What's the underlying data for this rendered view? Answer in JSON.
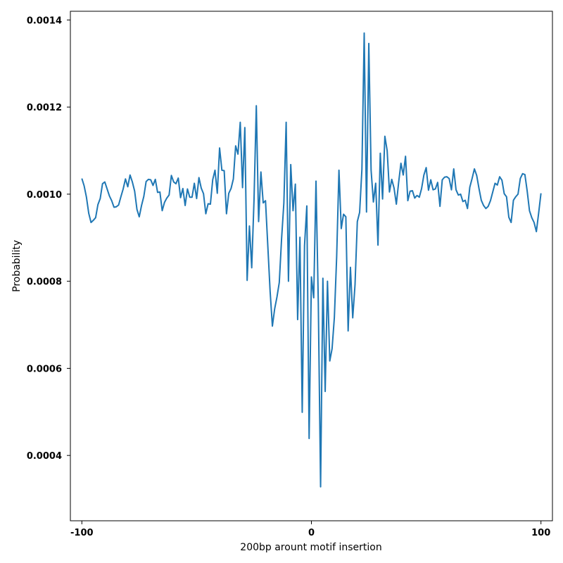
{
  "chart_data": {
    "type": "line",
    "title": "",
    "xlabel": "200bp arount motif insertion",
    "ylabel": "Probability",
    "xlim": [
      -105,
      105
    ],
    "ylim": [
      0.00025,
      0.00142
    ],
    "xticks": [
      -100,
      0,
      100
    ],
    "xtick_labels": [
      "-100",
      "0",
      "100"
    ],
    "yticks": [
      0.0004,
      0.0006,
      0.0008,
      0.001,
      0.0012,
      0.0014
    ],
    "ytick_labels": [
      "0.0004",
      "0.0006",
      "0.0008",
      "0.0010",
      "0.0012",
      "0.0014"
    ],
    "grid": false,
    "legend": "none",
    "series": [
      {
        "color": "#1f77b4",
        "x_start": -100,
        "x_step": 1,
        "y": [
          0.001036,
          0.001019,
          0.000993,
          0.000956,
          0.000935,
          0.00094,
          0.000946,
          0.000976,
          0.00099,
          0.001024,
          0.001028,
          0.001012,
          0.000996,
          0.000985,
          0.00097,
          0.000971,
          0.000975,
          0.000994,
          0.001012,
          0.001035,
          0.001017,
          0.001044,
          0.001028,
          0.001007,
          0.000965,
          0.000948,
          0.000974,
          0.000995,
          0.001029,
          0.001034,
          0.001033,
          0.00102,
          0.001034,
          0.001004,
          0.001005,
          0.000962,
          0.000981,
          0.000991,
          0.000998,
          0.001043,
          0.001028,
          0.001024,
          0.001037,
          0.000992,
          0.001013,
          0.000974,
          0.001012,
          0.000993,
          0.000993,
          0.001025,
          0.00099,
          0.001038,
          0.001014,
          0.001001,
          0.000955,
          0.000978,
          0.000977,
          0.001033,
          0.001055,
          0.001002,
          0.001106,
          0.001055,
          0.001054,
          0.000955,
          0.001002,
          0.001013,
          0.001035,
          0.001111,
          0.001092,
          0.001165,
          0.001015,
          0.001153,
          0.000802,
          0.000927,
          0.000831,
          0.000987,
          0.001203,
          0.000937,
          0.001051,
          0.00098,
          0.000985,
          0.000882,
          0.000778,
          0.000697,
          0.000737,
          0.000764,
          0.000797,
          0.000897,
          0.00098,
          0.001165,
          0.0008,
          0.001068,
          0.000962,
          0.001023,
          0.000712,
          0.000901,
          0.000499,
          0.000882,
          0.000973,
          0.000439,
          0.00081,
          0.000762,
          0.00103,
          0.000751,
          0.000328,
          0.000807,
          0.000547,
          0.0008,
          0.000617,
          0.000645,
          0.000717,
          0.000856,
          0.001055,
          0.000921,
          0.000954,
          0.000948,
          0.000686,
          0.000832,
          0.000716,
          0.000792,
          0.000937,
          0.000958,
          0.001057,
          0.00137,
          0.000959,
          0.001346,
          0.001055,
          0.000982,
          0.001025,
          0.000883,
          0.001094,
          0.000989,
          0.001133,
          0.0011,
          0.001005,
          0.001034,
          0.001014,
          0.000977,
          0.001027,
          0.001071,
          0.001044,
          0.001087,
          0.000985,
          0.001007,
          0.001008,
          0.000991,
          0.000997,
          0.000993,
          0.001013,
          0.001044,
          0.001061,
          0.001009,
          0.001033,
          0.00101,
          0.001012,
          0.001027,
          0.000972,
          0.001033,
          0.001039,
          0.00104,
          0.001036,
          0.00101,
          0.001058,
          0.00101,
          0.000998,
          0.001,
          0.000983,
          0.000986,
          0.000967,
          0.001016,
          0.001036,
          0.001058,
          0.001043,
          0.001013,
          0.000986,
          0.000974,
          0.000967,
          0.000972,
          0.000985,
          0.001005,
          0.001025,
          0.001021,
          0.00104,
          0.001032,
          0.001001,
          0.000994,
          0.000947,
          0.000935,
          0.000986,
          0.000994,
          0.001,
          0.001036,
          0.001047,
          0.001045,
          0.001007,
          0.000962,
          0.000946,
          0.000935,
          0.000914,
          0.000957,
          0.001002
        ]
      }
    ]
  }
}
